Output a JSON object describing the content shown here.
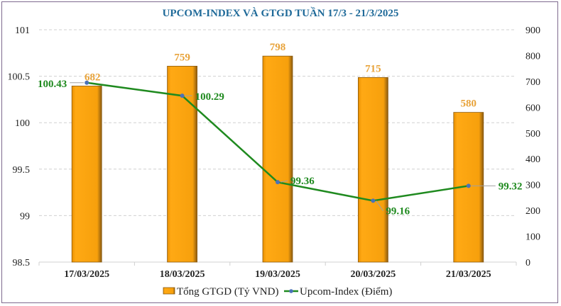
{
  "chart_data": {
    "type": "bar+line",
    "title": "UPCOM-INDEX VÀ GTGD TUẦN 17/3 -  21/3/2025",
    "categories": [
      "17/03/2025",
      "18/03/2025",
      "19/03/2025",
      "20/03/2025",
      "21/03/2025"
    ],
    "series": [
      {
        "name": "Tổng GTGD (Tỷ VND)",
        "type": "bar",
        "axis": "right",
        "values": [
          682,
          759,
          798,
          715,
          580
        ],
        "labels": [
          "682",
          "759",
          "798",
          "715",
          "580"
        ],
        "color": "#f5a00a"
      },
      {
        "name": "Upcom-Index (Điểm)",
        "type": "line",
        "axis": "left",
        "values": [
          100.43,
          100.29,
          99.36,
          99.16,
          99.32
        ],
        "labels": [
          "100.43",
          "100.29",
          "99.36",
          "99.16",
          "99.32"
        ],
        "color": "#1f8a1f",
        "marker_color": "#4a72b8"
      }
    ],
    "y_left": {
      "range": [
        98.5,
        101
      ],
      "ticks": [
        "98.5",
        "99",
        "99.5",
        "100",
        "100.5",
        "101"
      ]
    },
    "y_right": {
      "range": [
        0,
        900
      ],
      "ticks": [
        "0",
        "100",
        "200",
        "300",
        "400",
        "500",
        "600",
        "700",
        "800",
        "900"
      ]
    },
    "grid": true,
    "legend_position": "bottom"
  }
}
